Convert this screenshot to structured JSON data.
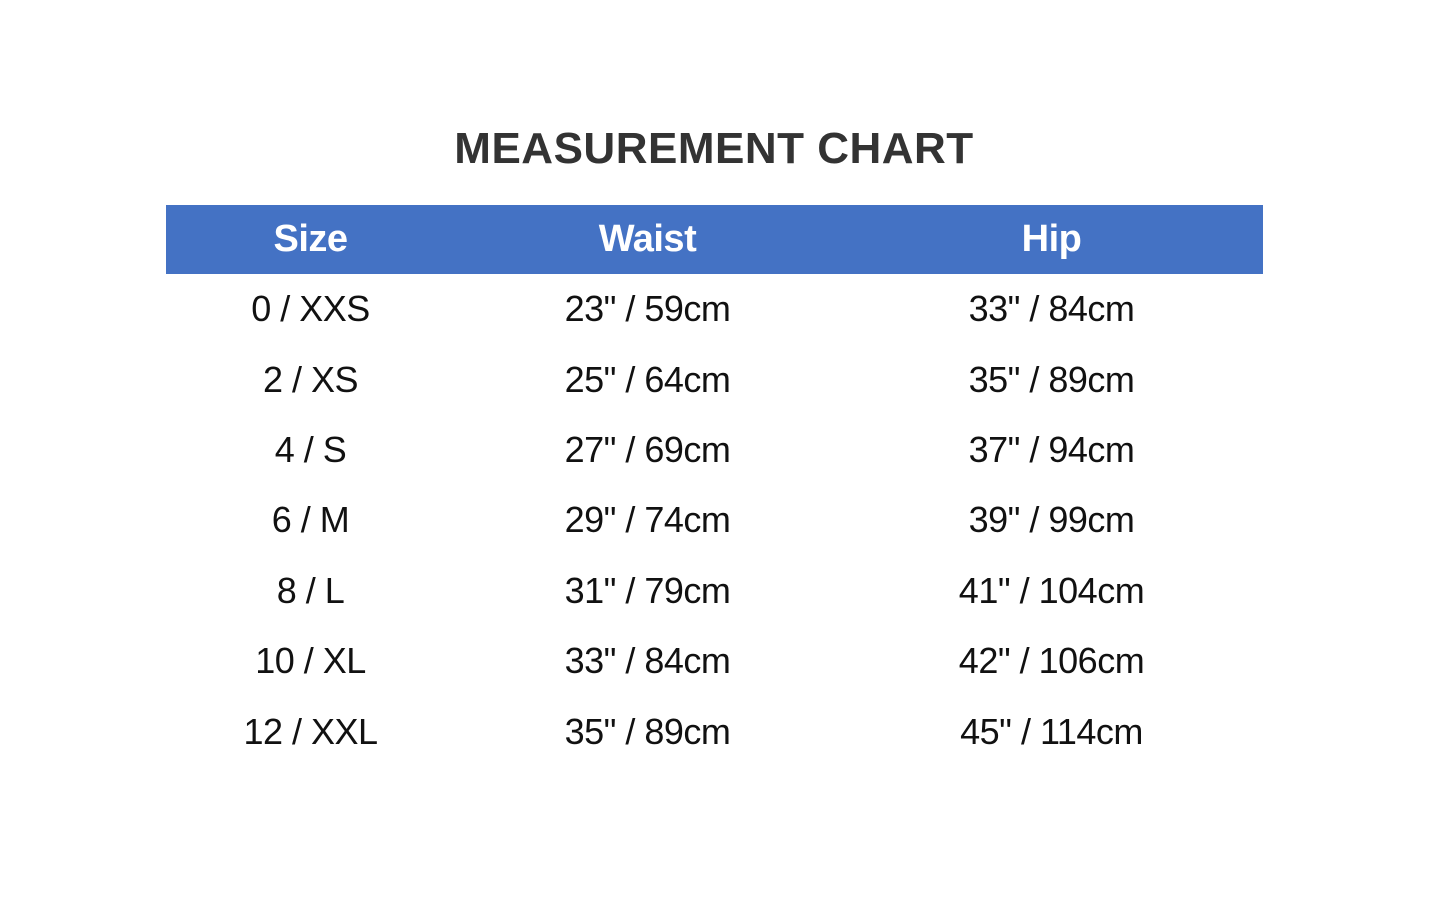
{
  "title": "MEASUREMENT CHART",
  "header_color": "#4472C4",
  "columns": [
    "Size",
    "Waist",
    "Hip"
  ],
  "rows": [
    [
      "0 / XXS",
      "23\" / 59cm",
      "33\" / 84cm"
    ],
    [
      "2 / XS",
      "25\" / 64cm",
      "35\" / 89cm"
    ],
    [
      "4 / S",
      "27\" / 69cm",
      "37\" / 94cm"
    ],
    [
      "6 / M",
      "29\" / 74cm",
      "39\" / 99cm"
    ],
    [
      "8 / L",
      "31\" / 79cm",
      "41\" / 104cm"
    ],
    [
      "10 / XL",
      "33\" / 84cm",
      "42\" / 106cm"
    ],
    [
      "12 / XXL",
      "35\" / 89cm",
      "45\" / 114cm"
    ]
  ]
}
